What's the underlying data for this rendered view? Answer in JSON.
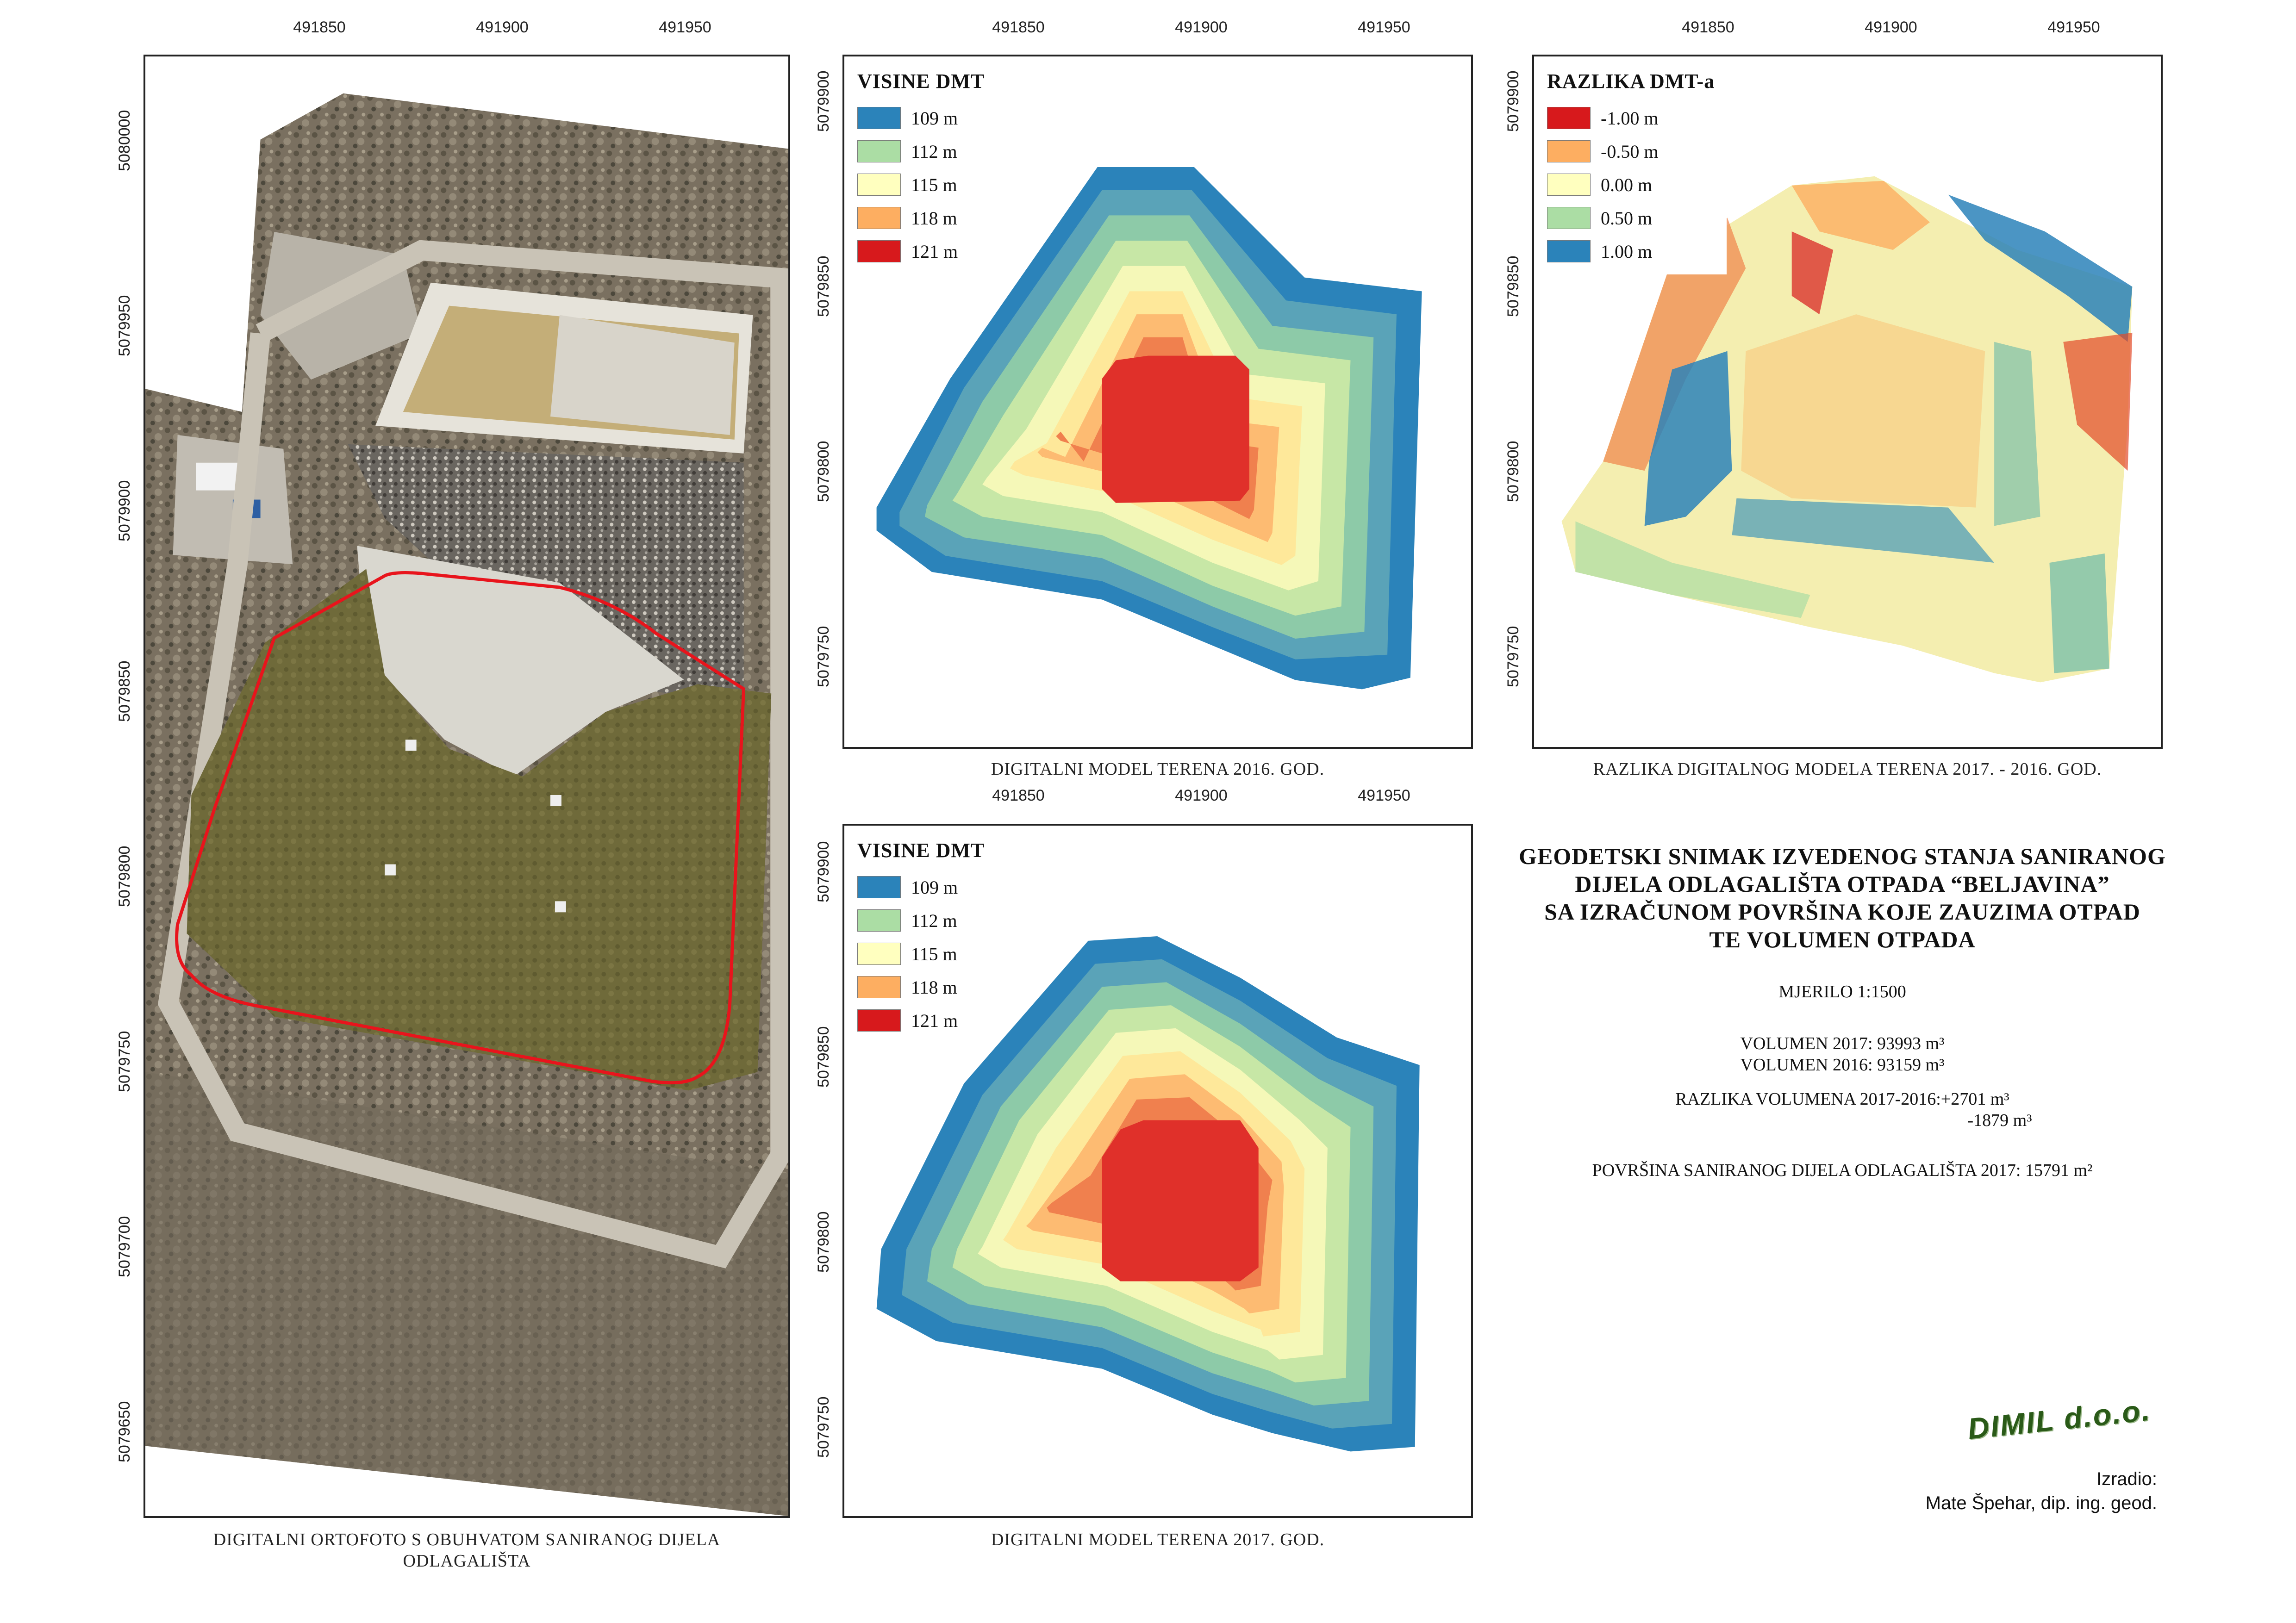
{
  "panels": {
    "ortho": {
      "caption_line1": "DIGITALNI ORTOFOTO S OBUHVATOM SANIRANOG DIJELA",
      "caption_line2": "ODLAGALIŠTA",
      "x_ticks": [
        "491850",
        "491900",
        "491950"
      ],
      "y_ticks": [
        "5080000",
        "5079950",
        "5079900",
        "5079850",
        "5079800",
        "5079750",
        "5079700",
        "5079650"
      ]
    },
    "dem2016": {
      "caption": "DIGITALNI MODEL TERENA 2016. GOD.",
      "x_ticks": [
        "491850",
        "491900",
        "491950"
      ],
      "y_ticks": [
        "5079900",
        "5079850",
        "5079800",
        "5079750"
      ],
      "legend_title": "VISINE DMT",
      "legend": [
        {
          "label": "109 m",
          "color": "#2b83ba"
        },
        {
          "label": "112 m",
          "color": "#abdda4"
        },
        {
          "label": "115 m",
          "color": "#ffffbf"
        },
        {
          "label": "118 m",
          "color": "#fdae61"
        },
        {
          "label": "121 m",
          "color": "#d7191c"
        }
      ]
    },
    "diff": {
      "caption": "RAZLIKA DIGITALNOG MODELA TERENA 2017. - 2016. GOD.",
      "x_ticks": [
        "491850",
        "491900",
        "491950"
      ],
      "y_ticks": [
        "5079900",
        "5079850",
        "5079800",
        "5079750"
      ],
      "legend_title": "RAZLIKA DMT-a",
      "legend": [
        {
          "label": "-1.00 m",
          "color": "#d7191c"
        },
        {
          "label": "-0.50 m",
          "color": "#fdae61"
        },
        {
          "label": "0.00 m",
          "color": "#ffffbf"
        },
        {
          "label": "0.50 m",
          "color": "#abdda4"
        },
        {
          "label": "1.00 m",
          "color": "#2b83ba"
        }
      ]
    },
    "dem2017": {
      "caption": "DIGITALNI MODEL TERENA 2017. GOD.",
      "x_ticks": [
        "491850",
        "491900",
        "491950"
      ],
      "y_ticks": [
        "5079900",
        "5079850",
        "5079800",
        "5079750"
      ],
      "legend_title": "VISINE DMT",
      "legend": [
        {
          "label": "109 m",
          "color": "#2b83ba"
        },
        {
          "label": "112 m",
          "color": "#abdda4"
        },
        {
          "label": "115 m",
          "color": "#ffffbf"
        },
        {
          "label": "118 m",
          "color": "#fdae61"
        },
        {
          "label": "121 m",
          "color": "#d7191c"
        }
      ]
    }
  },
  "info": {
    "title": [
      "GEODETSKI SNIMAK IZVEDENOG STANJA SANIRANOG",
      "DIJELA ODLAGALIŠTA OTPADA “BELJAVINA”",
      "SA IZRAČUNOM POVRŠINA KOJE ZAUZIMA OTPAD",
      "TE VOLUMEN OTPADA"
    ],
    "scale": "MJERILO 1:1500",
    "volume_2017": "VOLUMEN 2017: 93993 m³",
    "volume_2016": "VOLUMEN 2016: 93159 m³",
    "volume_diff_1": "RAZLIKA VOLUMENA 2017-2016:+2701 m³",
    "volume_diff_2": "-1879 m³",
    "area": "POVRŠINA SANIRANOG DIJELA ODLAGALIŠTA 2017: 15791 m²"
  },
  "company": "DIMIL d.o.o.",
  "author": {
    "label": "Izradio:",
    "name": "Mate Špehar, dip. ing. geod."
  }
}
